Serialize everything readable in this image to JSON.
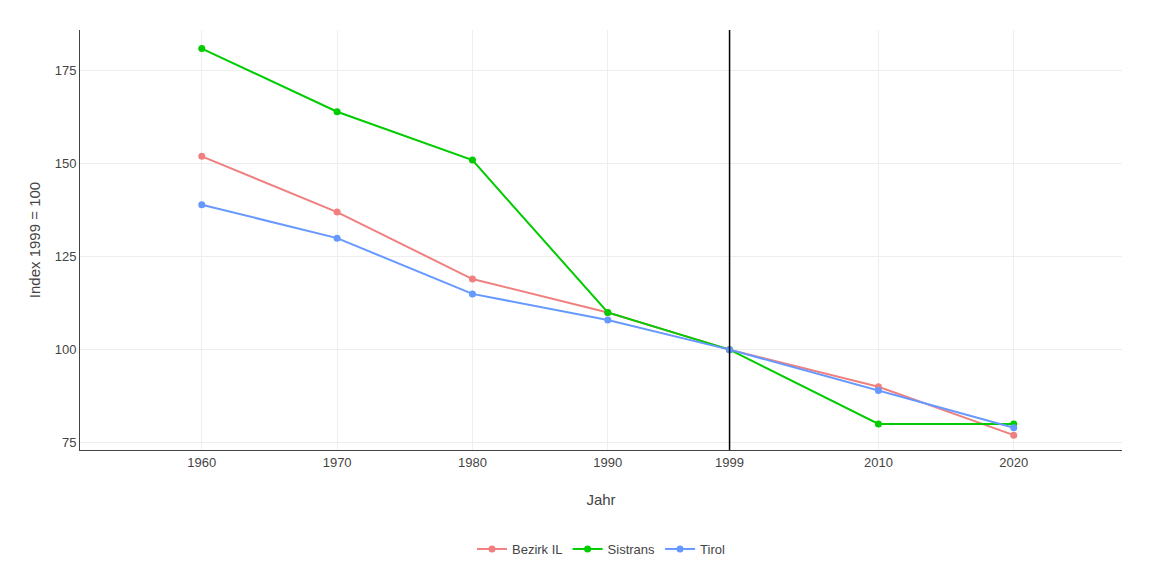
{
  "chart_data": {
    "type": "line",
    "x": [
      1960,
      1970,
      1980,
      1990,
      1999,
      2010,
      2020
    ],
    "series": [
      {
        "name": "Bezirk IL",
        "color": "#F08080",
        "values": [
          152,
          137,
          119,
          110,
          100,
          90,
          77
        ]
      },
      {
        "name": "Sistrans",
        "color": "#00CC00",
        "values": [
          181,
          164,
          151,
          110,
          100,
          80,
          80
        ]
      },
      {
        "name": "Tirol",
        "color": "#6699FF",
        "values": [
          139,
          130,
          115,
          108,
          100,
          89,
          79
        ]
      }
    ],
    "xlabel": "Jahr",
    "ylabel": "Index 1999 = 100",
    "xlim": [
      1951,
      2028
    ],
    "ylim": [
      73,
      186
    ],
    "xticks": [
      1960,
      1970,
      1980,
      1990,
      1999,
      2010,
      2020
    ],
    "yticks": [
      75,
      100,
      125,
      150,
      175
    ],
    "grid": true,
    "legend": "bottom",
    "marker": "circle",
    "line_style": "solid",
    "vlines": [
      {
        "x": 1999,
        "color": "black"
      }
    ]
  }
}
